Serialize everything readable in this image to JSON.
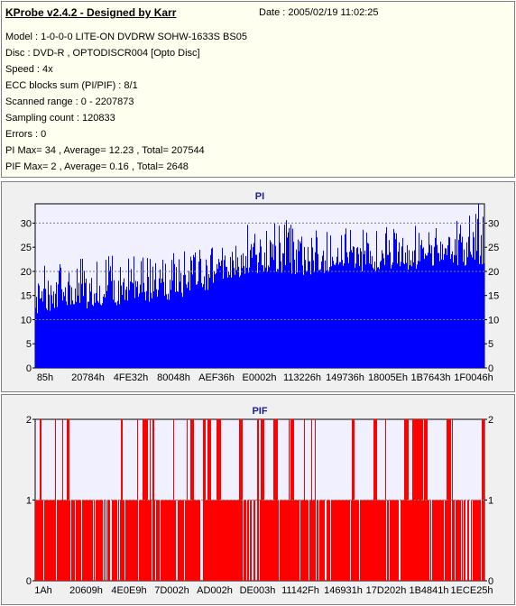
{
  "header": {
    "title": "KProbe v2.4.2 - Designed by Karr",
    "date": "Date : 2005/02/19 11:02:25",
    "lines": [
      "Model : 1-0-0-0 LITE-ON DVDRW SOHW-1633S BS05",
      "Disc : DVD-R , OPTODISCR004 [Opto Disc]",
      "Speed : 4x",
      "ECC blocks sum (PI/PIF) : 8/1",
      "Scanned range : 0 - 2207873",
      "Sampling count : 120833",
      "Errors : 0",
      "PI Max= 34 , Average= 12.23 , Total= 207544",
      "PIF Max= 2 , Average= 0.16 , Total= 2648"
    ]
  },
  "colors": {
    "pi": "#0000ff",
    "pif": "#ff0000",
    "plot_bg": "#f0f0ff",
    "grid": "#808080"
  },
  "chart_data": [
    {
      "type": "bar",
      "title": "PI",
      "ylim": [
        0,
        34
      ],
      "yticks": [
        "0",
        "5",
        "10",
        "15",
        "20",
        "25",
        "30"
      ],
      "ytick_values": [
        0,
        5,
        10,
        15,
        20,
        25,
        30
      ],
      "gridlines": [
        10,
        20,
        30
      ],
      "xtick_labels": [
        "85h",
        "20784h",
        "4FE32h",
        "80048h",
        "AEF36h",
        "E0002h",
        "113226h",
        "149736h",
        "18005Eh",
        "1B7643h",
        "1F0046h"
      ],
      "profile": [
        {
          "x": 0.0,
          "base": 11,
          "peak": 22
        },
        {
          "x": 0.1,
          "base": 12,
          "peak": 24
        },
        {
          "x": 0.2,
          "base": 13,
          "peak": 23
        },
        {
          "x": 0.3,
          "base": 14,
          "peak": 24
        },
        {
          "x": 0.4,
          "base": 16,
          "peak": 25
        },
        {
          "x": 0.42,
          "base": 18,
          "peak": 28
        },
        {
          "x": 0.52,
          "base": 20,
          "peak": 32
        },
        {
          "x": 0.6,
          "base": 19,
          "peak": 30
        },
        {
          "x": 0.7,
          "base": 20,
          "peak": 30
        },
        {
          "x": 0.8,
          "base": 20,
          "peak": 29
        },
        {
          "x": 0.9,
          "base": 21,
          "peak": 30
        },
        {
          "x": 1.0,
          "base": 21,
          "peak": 34
        }
      ]
    },
    {
      "type": "bar",
      "title": "PIF",
      "ylim": [
        0,
        2
      ],
      "yticks": [
        "0",
        "1",
        "2"
      ],
      "ytick_values": [
        0,
        1,
        2
      ],
      "gridlines": [
        1
      ],
      "xtick_labels": [
        "1Ah",
        "20609h",
        "4E0E9h",
        "7D002h",
        "AD002h",
        "DE003h",
        "11142Fh",
        "146931h",
        "17D202h",
        "1B4841h",
        "1ECE25h"
      ],
      "values_present": [
        0,
        1,
        2
      ]
    }
  ]
}
